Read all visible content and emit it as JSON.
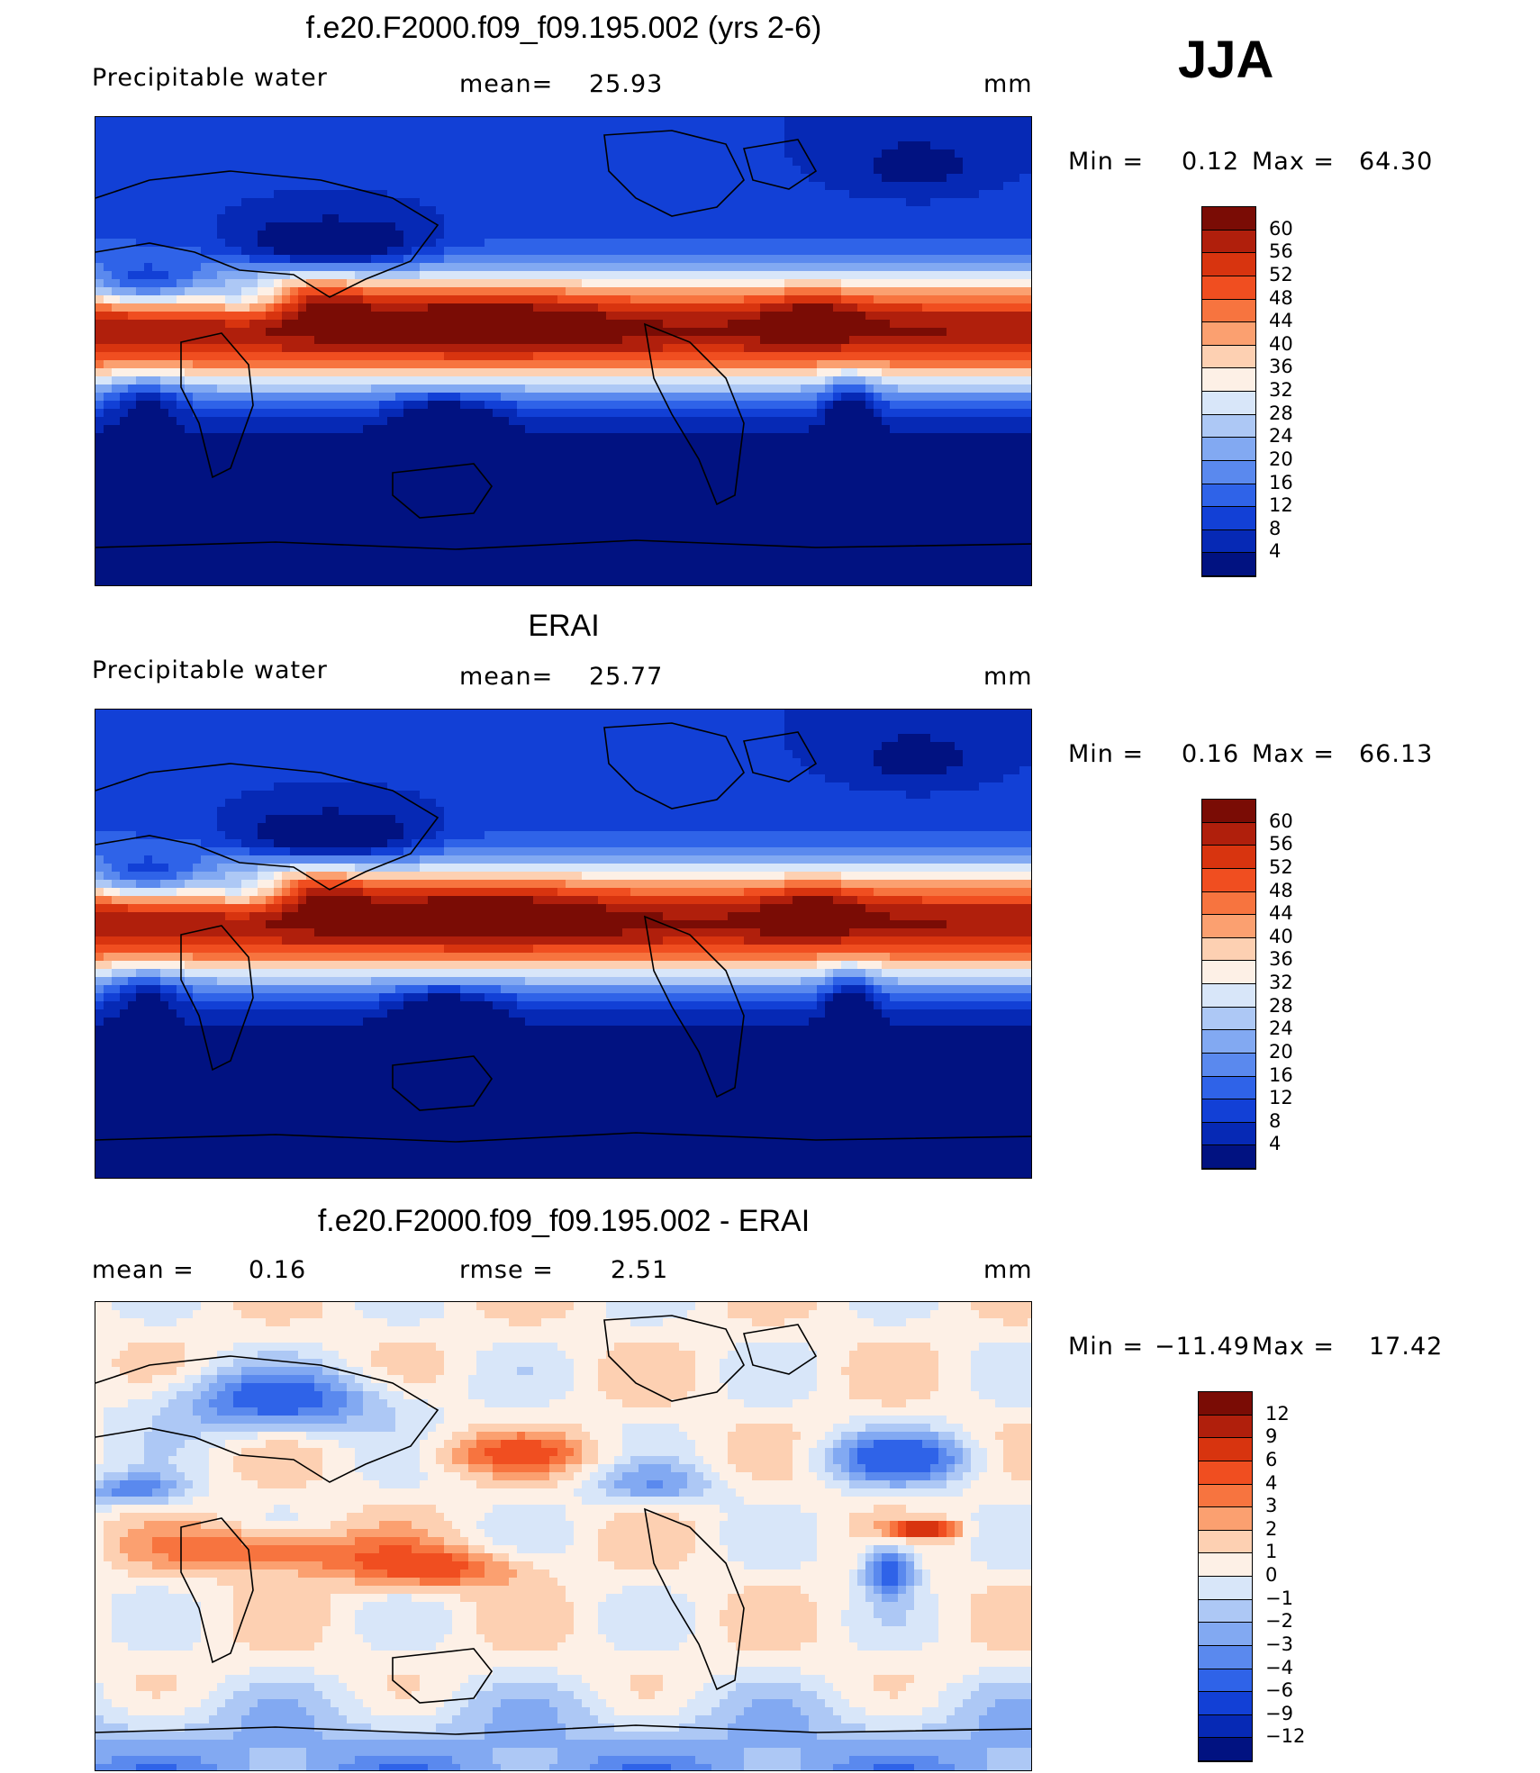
{
  "season": "JJA",
  "panels": [
    {
      "id": "model",
      "title": "f.e20.F2000.f09_f09.195.002 (yrs 2-6)",
      "left_label": "Precipitable water",
      "middle_label": "mean=",
      "middle_value": "25.93",
      "units": "mm",
      "minmax": {
        "min_label": "Min =",
        "min_value": "0.12",
        "max_label": "Max =",
        "max_value": "64.30"
      },
      "colorbar": {
        "levels": [
          "60",
          "56",
          "52",
          "48",
          "44",
          "40",
          "36",
          "32",
          "28",
          "24",
          "20",
          "16",
          "12",
          "8",
          "4"
        ],
        "colors": [
          "#7a0c05",
          "#b01f0c",
          "#d8340f",
          "#f04e20",
          "#f7743f",
          "#fba070",
          "#fdd0b2",
          "#fdf0e6",
          "#d8e6f9",
          "#adc8f5",
          "#82a9f2",
          "#5a89ee",
          "#2f63e8",
          "#1240d6",
          "#0629b5",
          "#011281"
        ]
      },
      "field": "abs"
    },
    {
      "id": "obs",
      "title": "ERAI",
      "left_label": "Precipitable water",
      "middle_label": "mean=",
      "middle_value": "25.77",
      "units": "mm",
      "minmax": {
        "min_label": "Min =",
        "min_value": "0.16",
        "max_label": "Max =",
        "max_value": "66.13"
      },
      "colorbar": {
        "levels": [
          "60",
          "56",
          "52",
          "48",
          "44",
          "40",
          "36",
          "32",
          "28",
          "24",
          "20",
          "16",
          "12",
          "8",
          "4"
        ],
        "colors": [
          "#7a0c05",
          "#b01f0c",
          "#d8340f",
          "#f04e20",
          "#f7743f",
          "#fba070",
          "#fdd0b2",
          "#fdf0e6",
          "#d8e6f9",
          "#adc8f5",
          "#82a9f2",
          "#5a89ee",
          "#2f63e8",
          "#1240d6",
          "#0629b5",
          "#011281"
        ]
      },
      "field": "abs"
    },
    {
      "id": "diff",
      "title": "f.e20.F2000.f09_f09.195.002 - ERAI",
      "left_label": "mean =",
      "left_value": "0.16",
      "middle_label": "rmse =",
      "middle_value": "2.51",
      "units": "mm",
      "minmax": {
        "min_label": "Min =",
        "min_value": "−11.49",
        "max_label": "Max =",
        "max_value": "17.42"
      },
      "colorbar": {
        "levels": [
          "12",
          "9",
          "6",
          "4",
          "3",
          "2",
          "1",
          "0",
          "−1",
          "−2",
          "−3",
          "−4",
          "−6",
          "−9",
          "−12"
        ],
        "colors": [
          "#7a0c05",
          "#b01f0c",
          "#d8340f",
          "#f04e20",
          "#f7743f",
          "#fba070",
          "#fdd0b2",
          "#fdf0e6",
          "#d8e6f9",
          "#adc8f5",
          "#82a9f2",
          "#5a89ee",
          "#2f63e8",
          "#1240d6",
          "#0629b5",
          "#011281"
        ]
      },
      "field": "diff"
    }
  ]
}
